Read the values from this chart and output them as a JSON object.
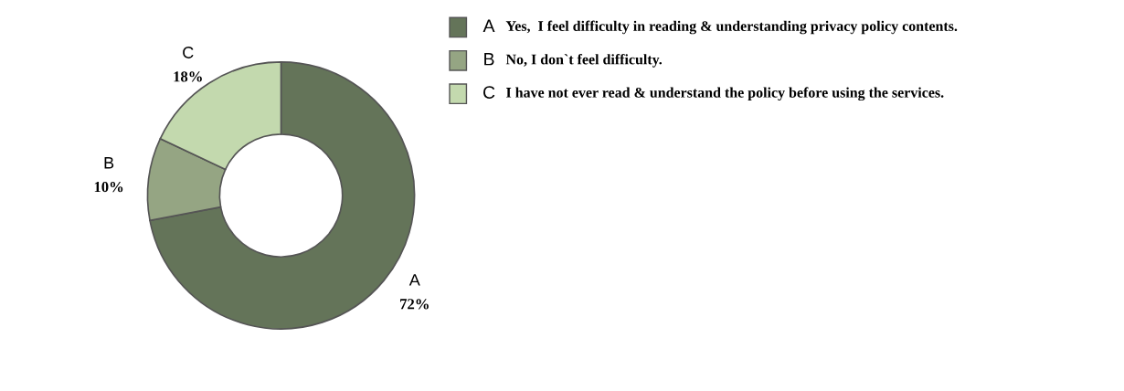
{
  "chart_data": {
    "type": "donut",
    "categories": [
      "A",
      "B",
      "C"
    ],
    "values": [
      72,
      10,
      18
    ],
    "value_labels": [
      "72%",
      "10%",
      "18%"
    ],
    "colors": [
      "#647459",
      "#95a583",
      "#c3d9ae"
    ],
    "legend": "top right",
    "annotations": [
      "Yes,  I feel difficulty in reading & understanding privacy policy contents.",
      "No, I don`t feel difficulty.",
      "I have not ever read & understand the policy before using the services."
    ]
  }
}
